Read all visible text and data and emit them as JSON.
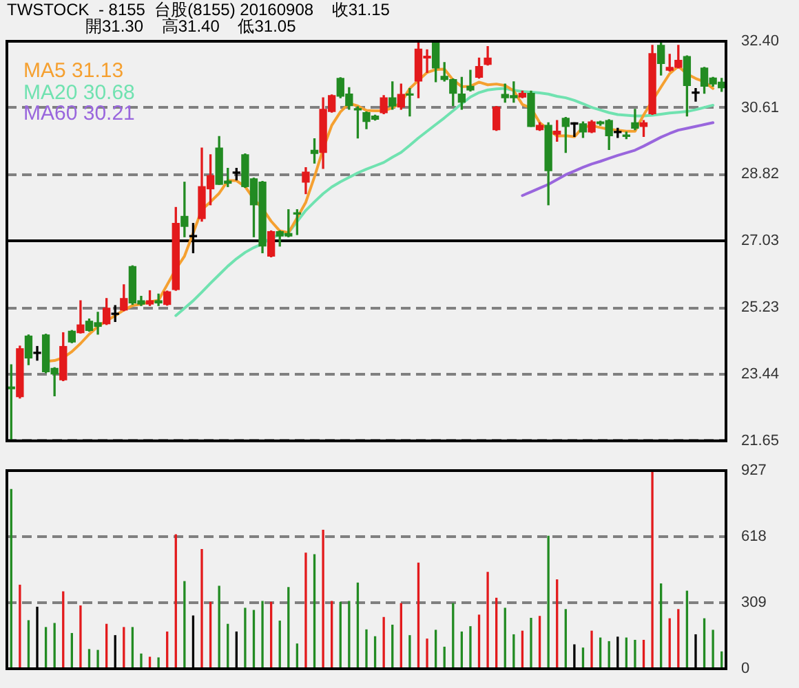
{
  "chart_data": [
    {
      "type": "candlestick",
      "title": "TWSTOCK  - 8155  台股(8155) 20160908    收31.15",
      "subtitle": "開31.30    高31.40    低31.05",
      "categories": [
        null,
        null,
        null,
        null,
        null,
        null,
        null,
        null,
        null,
        null,
        null,
        null,
        null,
        null,
        null,
        null,
        null,
        null,
        null,
        null,
        null,
        null,
        null,
        null,
        null,
        null,
        null,
        null,
        null,
        null,
        null,
        null,
        null,
        null,
        null,
        null,
        null,
        null,
        null,
        null,
        null,
        null,
        null,
        null,
        null,
        null,
        null,
        null,
        null,
        null,
        null,
        null,
        null,
        null,
        null,
        null,
        null,
        null,
        null,
        null,
        null,
        null,
        null,
        null,
        null,
        null,
        null,
        null,
        null,
        null,
        null,
        null,
        null,
        null,
        null,
        null,
        null,
        null,
        null,
        null,
        null,
        null,
        null
      ],
      "ohlc": [
        [
          23.1,
          23.7,
          21.65,
          23.05
        ],
        [
          22.84,
          24.2,
          22.8,
          24.13
        ],
        [
          24.47,
          24.5,
          23.7,
          23.88
        ],
        [
          24.0,
          24.19,
          23.82,
          24.0
        ],
        [
          24.5,
          24.52,
          23.48,
          23.51
        ],
        [
          23.6,
          23.62,
          22.86,
          23.45
        ],
        [
          23.29,
          24.56,
          23.27,
          24.19
        ],
        [
          24.6,
          24.62,
          24.29,
          24.31
        ],
        [
          24.56,
          25.42,
          24.55,
          24.77
        ],
        [
          24.87,
          24.93,
          24.6,
          24.62
        ],
        [
          24.83,
          25.11,
          24.52,
          24.73
        ],
        [
          24.8,
          25.48,
          24.78,
          25.22
        ],
        [
          25.05,
          25.29,
          24.86,
          25.05
        ],
        [
          25.17,
          25.85,
          25.15,
          25.48
        ],
        [
          26.34,
          26.36,
          25.32,
          25.36
        ],
        [
          25.42,
          25.54,
          25.29,
          25.33
        ],
        [
          25.33,
          25.69,
          25.29,
          25.42
        ],
        [
          25.42,
          25.6,
          25.29,
          25.36
        ],
        [
          25.32,
          25.68,
          25.3,
          25.66
        ],
        [
          25.72,
          27.93,
          25.7,
          27.5
        ],
        [
          27.69,
          28.61,
          27.14,
          27.42
        ],
        [
          27.14,
          27.5,
          26.71,
          27.14
        ],
        [
          27.63,
          29.53,
          27.56,
          28.49
        ],
        [
          28.43,
          29.35,
          28.0,
          28.79
        ],
        [
          29.53,
          29.84,
          28.55,
          28.55
        ],
        [
          28.64,
          28.98,
          28.49,
          28.58
        ],
        [
          28.85,
          28.98,
          28.67,
          28.85
        ],
        [
          29.35,
          29.37,
          28.47,
          28.49
        ],
        [
          28.7,
          28.72,
          27.14,
          28.0
        ],
        [
          28.61,
          28.63,
          26.71,
          26.89
        ],
        [
          26.62,
          27.3,
          26.6,
          27.28
        ],
        [
          27.28,
          27.3,
          26.89,
          27.16
        ],
        [
          27.23,
          27.87,
          27.14,
          27.16
        ],
        [
          27.78,
          27.87,
          27.2,
          27.75
        ],
        [
          28.61,
          29.0,
          28.3,
          28.88
        ],
        [
          29.47,
          29.78,
          29.12,
          29.38
        ],
        [
          29.41,
          30.88,
          28.98,
          30.57
        ],
        [
          30.51,
          30.96,
          30.49,
          30.94
        ],
        [
          31.4,
          31.42,
          30.88,
          30.92
        ],
        [
          30.98,
          31.15,
          30.57,
          30.67
        ],
        [
          30.59,
          30.64,
          29.8,
          30.55
        ],
        [
          30.48,
          30.5,
          30.05,
          30.24
        ],
        [
          30.39,
          30.41,
          30.28,
          30.3
        ],
        [
          30.48,
          30.94,
          30.45,
          30.88
        ],
        [
          30.88,
          31.31,
          30.57,
          30.66
        ],
        [
          30.63,
          31.25,
          30.57,
          30.97
        ],
        [
          30.98,
          31.13,
          30.39,
          30.95
        ],
        [
          31.33,
          32.35,
          30.88,
          32.19
        ],
        [
          31.95,
          32.17,
          31.56,
          32.0
        ],
        [
          32.38,
          32.4,
          31.31,
          31.68
        ],
        [
          31.46,
          31.83,
          31.33,
          31.37
        ],
        [
          31.37,
          31.39,
          30.67,
          31.0
        ],
        [
          30.98,
          31.43,
          30.57,
          30.76
        ],
        [
          31.19,
          31.62,
          31.06,
          31.09
        ],
        [
          31.43,
          31.95,
          31.41,
          31.72
        ],
        [
          31.78,
          32.26,
          31.76,
          31.95
        ],
        [
          30.02,
          30.65,
          30.0,
          30.63
        ],
        [
          30.97,
          31.25,
          30.76,
          30.88
        ],
        [
          30.94,
          31.31,
          30.76,
          30.88
        ],
        [
          30.9,
          31.06,
          30.88,
          31.0
        ],
        [
          31.0,
          31.06,
          30.11,
          30.11
        ],
        [
          30.02,
          30.21,
          30.0,
          30.14
        ],
        [
          30.14,
          30.21,
          28.0,
          28.92
        ],
        [
          29.9,
          30.27,
          29.71,
          29.98
        ],
        [
          30.33,
          30.35,
          29.41,
          30.11
        ],
        [
          30.17,
          30.21,
          29.84,
          30.17
        ],
        [
          30.18,
          30.23,
          29.81,
          29.96
        ],
        [
          29.96,
          30.27,
          29.94,
          30.23
        ],
        [
          30.23,
          30.25,
          30.14,
          30.18
        ],
        [
          30.27,
          30.29,
          29.49,
          29.86
        ],
        [
          29.94,
          30.06,
          29.81,
          29.94
        ],
        [
          29.88,
          29.96,
          29.78,
          29.84
        ],
        [
          30.21,
          30.57,
          30.02,
          30.06
        ],
        [
          30.11,
          30.27,
          29.84,
          30.21
        ],
        [
          30.45,
          32.29,
          30.43,
          32.07
        ],
        [
          32.29,
          32.35,
          31.49,
          31.8
        ],
        [
          31.62,
          32.05,
          31.6,
          31.7
        ],
        [
          31.7,
          32.29,
          31.68,
          31.89
        ],
        [
          31.99,
          32.01,
          30.39,
          31.21
        ],
        [
          31.0,
          31.13,
          30.79,
          31.0
        ],
        [
          31.68,
          31.7,
          31.0,
          31.19
        ],
        [
          31.41,
          31.43,
          31.19,
          31.25
        ],
        [
          31.3,
          31.4,
          31.05,
          31.15
        ]
      ],
      "colors": [
        "#228b22",
        "#e31a1c",
        "#228b22",
        "#000000",
        "#228b22",
        "#228b22",
        "#e31a1c",
        "#228b22",
        "#e31a1c",
        "#228b22",
        "#228b22",
        "#e31a1c",
        "#000000",
        "#e31a1c",
        "#228b22",
        "#228b22",
        "#e31a1c",
        "#228b22",
        "#e31a1c",
        "#e31a1c",
        "#228b22",
        "#000000",
        "#e31a1c",
        "#e31a1c",
        "#228b22",
        "#228b22",
        "#000000",
        "#228b22",
        "#228b22",
        "#228b22",
        "#e31a1c",
        "#228b22",
        "#228b22",
        "#228b22",
        "#e31a1c",
        "#228b22",
        "#e31a1c",
        "#e31a1c",
        "#228b22",
        "#228b22",
        "#228b22",
        "#228b22",
        "#228b22",
        "#e31a1c",
        "#228b22",
        "#e31a1c",
        "#228b22",
        "#e31a1c",
        "#e31a1c",
        "#228b22",
        "#228b22",
        "#228b22",
        "#228b22",
        "#228b22",
        "#e31a1c",
        "#e31a1c",
        "#e31a1c",
        "#228b22",
        "#228b22",
        "#e31a1c",
        "#228b22",
        "#e31a1c",
        "#228b22",
        "#e31a1c",
        "#228b22",
        "#000000",
        "#228b22",
        "#e31a1c",
        "#228b22",
        "#228b22",
        "#000000",
        "#228b22",
        "#228b22",
        "#e31a1c",
        "#e31a1c",
        "#228b22",
        "#e31a1c",
        "#e31a1c",
        "#228b22",
        "#000000",
        "#228b22",
        "#228b22",
        "#228b22"
      ],
      "series": [
        {
          "name": "MA5 31.13",
          "type": "line",
          "color": "#f5a030",
          "values": [
            null,
            null,
            null,
            null,
            23.79,
            23.81,
            23.89,
            24.05,
            24.27,
            24.52,
            24.73,
            24.88,
            25.02,
            25.17,
            25.29,
            25.33,
            25.39,
            25.43,
            25.85,
            26.27,
            26.62,
            27.24,
            27.87,
            28.08,
            28.31,
            28.65,
            28.65,
            28.49,
            28.16,
            27.9,
            27.56,
            27.3,
            27.25,
            27.65,
            28.07,
            28.75,
            29.5,
            30.14,
            30.5,
            30.73,
            30.66,
            30.54,
            30.53,
            30.53,
            30.61,
            30.75,
            31.13,
            31.35,
            31.56,
            31.64,
            31.65,
            31.36,
            31.18,
            31.19,
            31.3,
            31.23,
            31.25,
            31.21,
            31.07,
            30.7,
            30.6,
            30.21,
            30.03,
            29.85,
            29.86,
            29.83,
            30.09,
            30.13,
            30.08,
            30.03,
            30.01,
            29.98,
            29.98,
            30.42,
            30.8,
            31.17,
            31.53,
            31.73,
            31.52,
            31.4,
            31.31,
            31.13,
            null
          ]
        },
        {
          "name": "MA20 30.68",
          "type": "line",
          "color": "#70e2b0",
          "values": [
            null,
            null,
            null,
            null,
            null,
            null,
            null,
            null,
            null,
            null,
            null,
            null,
            null,
            null,
            null,
            null,
            null,
            null,
            null,
            25.02,
            25.22,
            25.42,
            25.65,
            25.89,
            26.12,
            26.35,
            26.55,
            26.72,
            26.85,
            26.95,
            27.12,
            27.19,
            27.25,
            27.55,
            27.85,
            28.08,
            28.3,
            28.48,
            28.62,
            28.74,
            28.86,
            28.96,
            29.05,
            29.14,
            29.28,
            29.41,
            29.6,
            29.8,
            29.98,
            30.16,
            30.34,
            30.53,
            30.72,
            30.9,
            31.02,
            31.09,
            31.12,
            31.13,
            31.08,
            31.05,
            31.03,
            31.01,
            30.98,
            30.92,
            30.88,
            30.81,
            30.72,
            30.62,
            30.55,
            30.48,
            30.43,
            30.41,
            30.39,
            30.39,
            30.41,
            30.44,
            30.47,
            30.49,
            30.51,
            30.56,
            30.62,
            30.68,
            null
          ]
        },
        {
          "name": "MA60 30.21",
          "type": "line",
          "color": "#9966dd",
          "values": [
            null,
            null,
            null,
            null,
            null,
            null,
            null,
            null,
            null,
            null,
            null,
            null,
            null,
            null,
            null,
            null,
            null,
            null,
            null,
            null,
            null,
            null,
            null,
            null,
            null,
            null,
            null,
            null,
            null,
            null,
            null,
            null,
            null,
            null,
            null,
            null,
            null,
            null,
            null,
            null,
            null,
            null,
            null,
            null,
            null,
            null,
            null,
            null,
            null,
            null,
            null,
            null,
            null,
            null,
            null,
            null,
            null,
            null,
            null,
            28.25,
            28.35,
            28.45,
            28.55,
            28.68,
            28.81,
            28.91,
            29.01,
            29.1,
            29.17,
            29.25,
            29.33,
            29.4,
            29.47,
            29.58,
            29.7,
            29.82,
            29.92,
            30.01,
            30.06,
            30.11,
            30.16,
            30.21,
            null
          ]
        }
      ],
      "ylim": [
        21.65,
        32.4
      ],
      "yticks": [
        21.65,
        23.44,
        25.23,
        27.03,
        28.82,
        30.61,
        {
          "value": 32.4,
          "label": "32.40"
        }
      ],
      "ref_lines": [
        {
          "axis": "y",
          "value": 27.03,
          "color": "#000000",
          "line_style": "solid"
        }
      ],
      "grid": "y",
      "legend": "top left",
      "tick_labels": "y"
    },
    {
      "type": "bar",
      "categories": [
        null,
        null,
        null,
        null,
        null,
        null,
        null,
        null,
        null,
        null,
        null,
        null,
        null,
        null,
        null,
        null,
        null,
        null,
        null,
        null,
        null,
        null,
        null,
        null,
        null,
        null,
        null,
        null,
        null,
        null,
        null,
        null,
        null,
        null,
        null,
        null,
        null,
        null,
        null,
        null,
        null,
        null,
        null,
        null,
        null,
        null,
        null,
        null,
        null,
        null,
        null,
        null,
        null,
        null,
        null,
        null,
        null,
        null,
        null,
        null,
        null,
        null,
        null,
        null,
        null,
        null,
        null,
        null,
        null,
        null,
        null,
        null,
        null,
        null,
        null,
        null,
        null,
        null,
        null,
        null,
        null,
        null,
        null
      ],
      "values": [
        839,
        391,
        225,
        288,
        193,
        212,
        360,
        165,
        294,
        90,
        86,
        208,
        155,
        193,
        193,
        69,
        54,
        51,
        172,
        627,
        408,
        247,
        558,
        311,
        386,
        208,
        172,
        283,
        273,
        315,
        311,
        223,
        380,
        116,
        541,
        534,
        648,
        315,
        311,
        315,
        401,
        182,
        150,
        240,
        204,
        305,
        155,
        494,
        139,
        180,
        101,
        305,
        172,
        197,
        251,
        451,
        330,
        283,
        159,
        176,
        236,
        245,
        620,
        416,
        277,
        112,
        97,
        176,
        144,
        127,
        148,
        144,
        133,
        133,
        927,
        397,
        234,
        277,
        363,
        159,
        234,
        180,
        79
      ],
      "colors": [
        "#228b22",
        "#e31a1c",
        "#228b22",
        "#000000",
        "#228b22",
        "#228b22",
        "#e31a1c",
        "#228b22",
        "#e31a1c",
        "#228b22",
        "#228b22",
        "#e31a1c",
        "#000000",
        "#e31a1c",
        "#228b22",
        "#228b22",
        "#e31a1c",
        "#228b22",
        "#e31a1c",
        "#e31a1c",
        "#228b22",
        "#000000",
        "#e31a1c",
        "#e31a1c",
        "#228b22",
        "#228b22",
        "#000000",
        "#228b22",
        "#228b22",
        "#228b22",
        "#e31a1c",
        "#228b22",
        "#228b22",
        "#228b22",
        "#e31a1c",
        "#228b22",
        "#e31a1c",
        "#e31a1c",
        "#228b22",
        "#228b22",
        "#228b22",
        "#228b22",
        "#228b22",
        "#e31a1c",
        "#228b22",
        "#e31a1c",
        "#228b22",
        "#e31a1c",
        "#e31a1c",
        "#228b22",
        "#228b22",
        "#228b22",
        "#228b22",
        "#228b22",
        "#e31a1c",
        "#e31a1c",
        "#e31a1c",
        "#228b22",
        "#228b22",
        "#e31a1c",
        "#228b22",
        "#e31a1c",
        "#228b22",
        "#e31a1c",
        "#228b22",
        "#000000",
        "#228b22",
        "#e31a1c",
        "#228b22",
        "#228b22",
        "#000000",
        "#228b22",
        "#228b22",
        "#e31a1c",
        "#e31a1c",
        "#228b22",
        "#e31a1c",
        "#e31a1c",
        "#228b22",
        "#000000",
        "#228b22",
        "#228b22",
        "#228b22"
      ],
      "ylim": [
        0,
        927
      ],
      "yticks": [
        0,
        309,
        618,
        927
      ],
      "grid": "y",
      "tick_labels": "y"
    }
  ]
}
